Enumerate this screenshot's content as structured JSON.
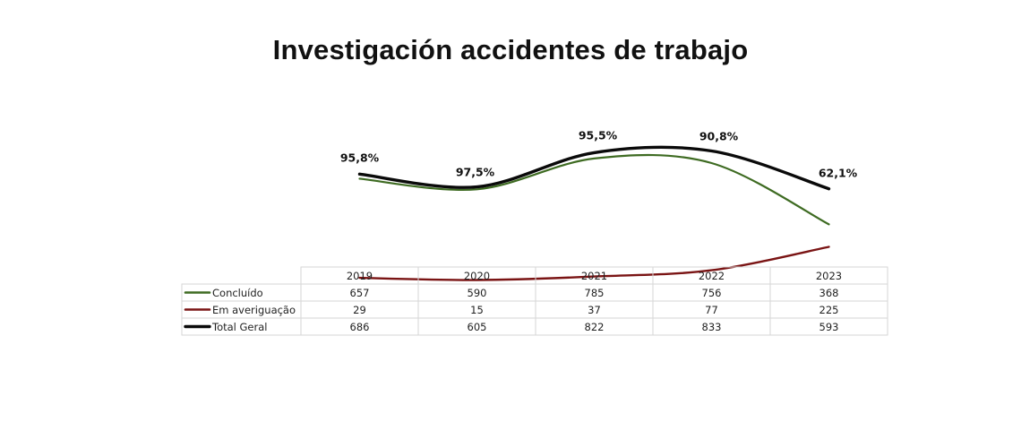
{
  "title": "Investigación accidentes de trabajo",
  "chart_data": {
    "type": "line",
    "categories": [
      "2019",
      "2020",
      "2021",
      "2022",
      "2023"
    ],
    "series": [
      {
        "name": "Concluído",
        "values": [
          657,
          590,
          785,
          756,
          368
        ],
        "color": "#3e6b22"
      },
      {
        "name": "Em averiguação",
        "values": [
          29,
          15,
          37,
          77,
          225
        ],
        "color": "#7a1414"
      },
      {
        "name": "Total Geral",
        "values": [
          686,
          605,
          822,
          833,
          593
        ],
        "color": "#0a0a0a"
      }
    ],
    "annotations": [
      "95,8%",
      "97,5%",
      "95,5%",
      "90,8%",
      "62,1%"
    ],
    "data_table": true,
    "legend": "data-table-rows"
  }
}
